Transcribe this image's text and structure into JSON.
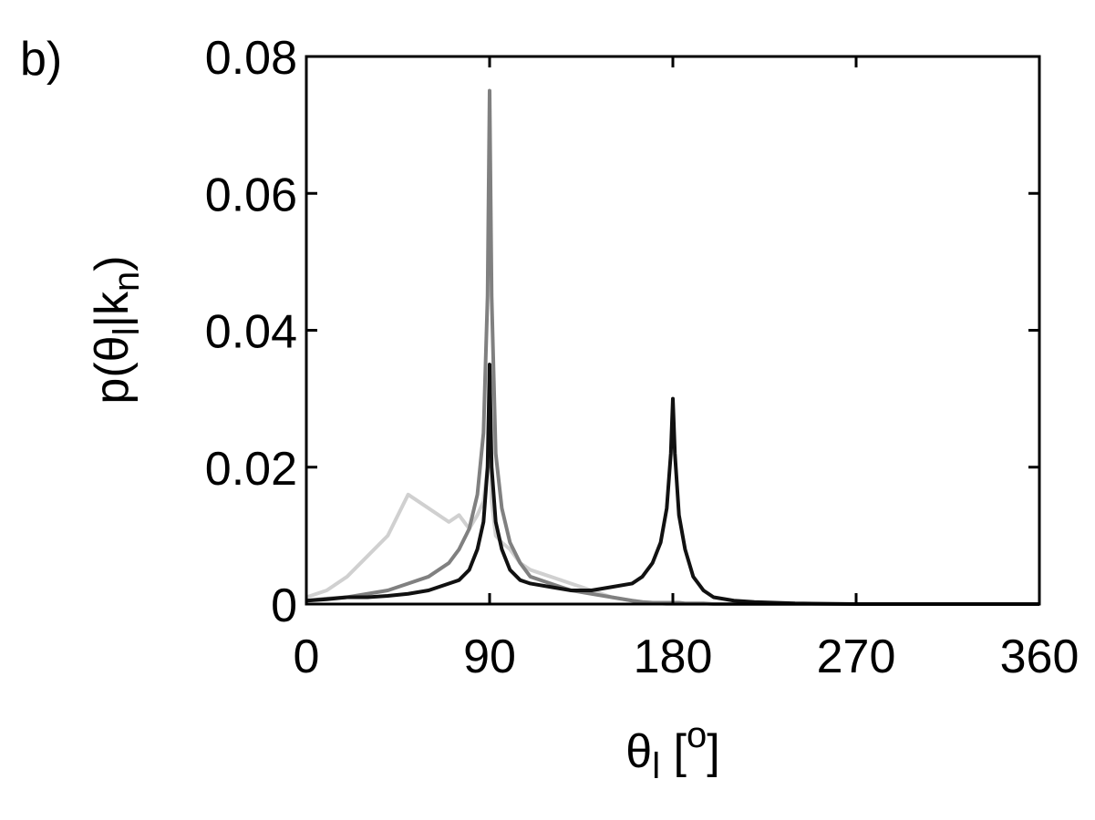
{
  "chart_data": {
    "type": "line",
    "panel_label": "b)",
    "xlabel": [
      "θ",
      "l",
      " [",
      "o",
      "]"
    ],
    "ylabel": [
      "p(θ",
      "l",
      "|k",
      "n",
      ")"
    ],
    "x": [
      0,
      10,
      20,
      30,
      40,
      50,
      60,
      70,
      75,
      80,
      84,
      87,
      89,
      90,
      91,
      93,
      96,
      100,
      105,
      110,
      120,
      130,
      140,
      150,
      160,
      165,
      170,
      174,
      177,
      179,
      180,
      181,
      183,
      186,
      190,
      195,
      200,
      210,
      220,
      240,
      270,
      300,
      330,
      360
    ],
    "series": [
      {
        "color": "#d0d0d0",
        "values": [
          0.001,
          0.002,
          0.004,
          0.007,
          0.01,
          0.016,
          0.014,
          0.012,
          0.013,
          0.011,
          0.013,
          0.015,
          0.02,
          0.025,
          0.015,
          0.01,
          0.009,
          0.008,
          0.006,
          0.005,
          0.004,
          0.003,
          0.002,
          0.001,
          0.0005,
          0.0003,
          0.0002,
          0.0001,
          0,
          0,
          0,
          0,
          0,
          0,
          0,
          0,
          0,
          0,
          0,
          0,
          0,
          0,
          0,
          0
        ]
      },
      {
        "color": "#808080",
        "values": [
          0.0005,
          0.0008,
          0.001,
          0.0015,
          0.002,
          0.003,
          0.004,
          0.006,
          0.008,
          0.011,
          0.016,
          0.025,
          0.045,
          0.075,
          0.045,
          0.022,
          0.014,
          0.009,
          0.006,
          0.004,
          0.003,
          0.002,
          0.0015,
          0.001,
          0.0005,
          0.0003,
          0.0002,
          0.0002,
          0.0002,
          0.0002,
          0.0002,
          0.0002,
          0.0002,
          0.0001,
          0.0001,
          0.0001,
          0,
          0,
          0,
          0,
          0,
          0,
          0,
          0
        ]
      },
      {
        "color": "#111111",
        "values": [
          0.0005,
          0.0007,
          0.001,
          0.001,
          0.0012,
          0.0015,
          0.002,
          0.003,
          0.0035,
          0.005,
          0.008,
          0.012,
          0.02,
          0.035,
          0.02,
          0.012,
          0.008,
          0.005,
          0.0035,
          0.003,
          0.0025,
          0.002,
          0.002,
          0.0025,
          0.003,
          0.004,
          0.006,
          0.009,
          0.014,
          0.022,
          0.03,
          0.022,
          0.013,
          0.008,
          0.004,
          0.002,
          0.001,
          0.0005,
          0.0003,
          0.0001,
          0,
          0,
          0,
          0
        ]
      }
    ],
    "xlim": [
      0,
      360
    ],
    "xticks": [
      0,
      90,
      180,
      270,
      360
    ],
    "ylim": [
      0,
      0.08
    ],
    "yticks": [
      0,
      0.02,
      0.04,
      0.06,
      0.08
    ]
  }
}
